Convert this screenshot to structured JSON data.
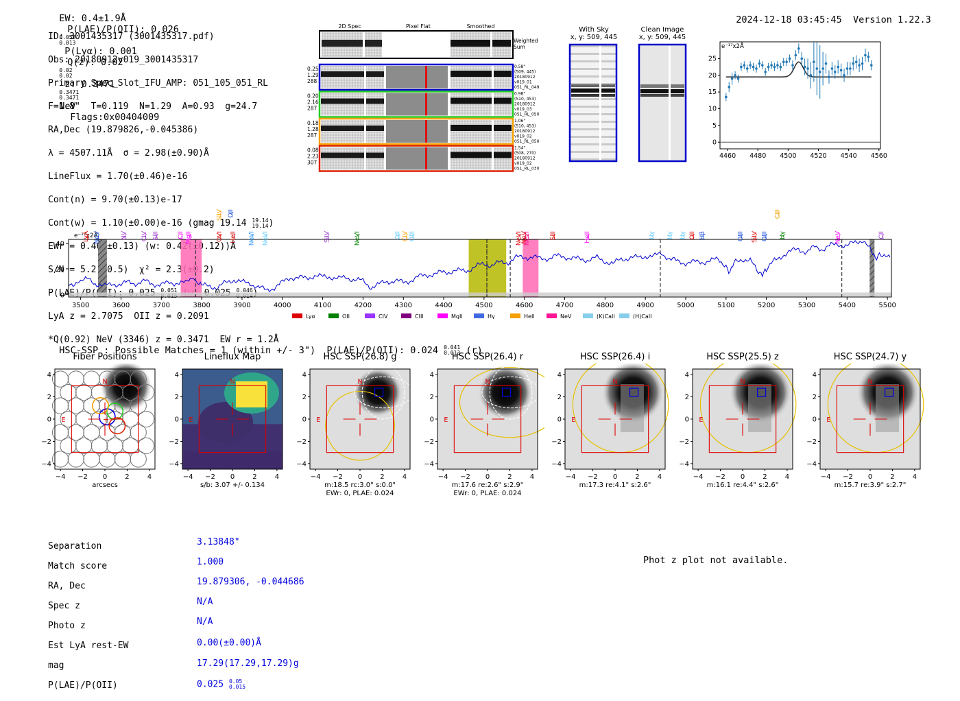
{
  "header": {
    "ew": "EW: 0.4±1.9Å",
    "plae_label": "P(LAE)/P(OII): 0.026",
    "plae_hi": "0.058",
    "plae_lo": "0.013",
    "plya": "P(Lyα): 0.001",
    "qz_label": "Q(z): 0.02",
    "qz_hi": "0.02",
    "qz_lo": "0.02",
    "z_label": "z: 0.3471",
    "z_hi": "0.3471",
    "z_lo": "0.3471",
    "z_line": "NeV",
    "flags": "Flags:0x00404009",
    "datetime": "2024-12-18 03:45:45",
    "version": "Version 1.22.3"
  },
  "info": {
    "id": "ID: 3001435317 (3001435317.pdf)",
    "obs": "Obs: 20180912v019_3001435317",
    "primary": "Primary Spec_Slot_IFU_AMP: 051_105_051_RL",
    "fline": "F=1.8\"  T=0.119  N=1.29  A=0.93  g=24.7",
    "radec": "RA,Dec (19.879826,-0.045386)",
    "lambda": "λ = 4507.11Å  σ = 2.98(±0.90)Å",
    "lineflux": "LineFlux = 1.70(±0.46)e-16",
    "contn": "Cont(n) = 9.70(±0.13)e-17",
    "contw": "Cont(w) = 1.10(±0.00)e-16 (gmag 19.14",
    "contw_hi": "19.14",
    "contw_lo": "19.14",
    "ewr": "EWr = 0.46(±0.13) (w: 0.42(±0.12))Å",
    "sn": "S/N = 5.2(±0.5)  χ² = 2.3(±0.2)",
    "plae": "P(LAE)/P(OII): 0.025",
    "plae_hi": "0.051",
    "plae_lo": "0.015",
    "plae_w": "(w: 0.025",
    "plae_w_hi": "0.046",
    "plae_w_lo": "0.014",
    "lya": "LyA z = 2.7075  OII z = 0.2091",
    "q": "*Q(0.92) NeV (3346) z = 0.3471  EW r = 1.2Å"
  },
  "spec2d": {
    "col_headers": [
      "2D Spec",
      "Pixel Flat",
      "Smoothed"
    ],
    "weighted_sum": [
      "Weighted",
      "Sum"
    ],
    "rows": [
      {
        "left": [
          "0.25",
          "1.29",
          "288"
        ],
        "right": [
          "0.58\"",
          "(509, 445)",
          "20180912",
          "v019_01",
          "051_RL_049"
        ],
        "color": "#0000cc"
      },
      {
        "left": [
          "0.20",
          "2.16",
          "287"
        ],
        "right": [
          "0.98\"",
          "(510, 453)",
          "20180912",
          "v019_03",
          "051_RL_050"
        ],
        "color": "#22cc22"
      },
      {
        "left": [
          "0.18",
          "1.28",
          "287"
        ],
        "right": [
          "1.06\"",
          "(510, 453)",
          "20180912",
          "v019_02",
          "051_RL_050"
        ],
        "color": "#f5a000"
      },
      {
        "left": [
          "0.08",
          "2.23",
          "307"
        ],
        "right": [
          "1.54\"",
          "(508, 270)",
          "20180912",
          "v019_02",
          "051_RL_030"
        ],
        "color": "#dd2200"
      }
    ]
  },
  "sky": {
    "with_sky_title": "With Sky",
    "with_sky_xy": "x, y: 509, 445",
    "clean_title": "Clean Image",
    "clean_xy": "x, y: 509, 445"
  },
  "zoom_chart": {
    "type": "scatter",
    "unit_label": "e⁻¹⁷x2Å",
    "xlim": [
      4455,
      4561
    ],
    "ylim": [
      -2,
      30
    ],
    "xticks": [
      4460,
      4480,
      4500,
      4520,
      4540,
      4560
    ],
    "yticks": [
      0,
      5,
      10,
      15,
      20,
      25
    ],
    "x": [
      4459,
      4461,
      4463,
      4465,
      4467,
      4469,
      4471,
      4473,
      4475,
      4477,
      4479,
      4481,
      4483,
      4485,
      4487,
      4489,
      4491,
      4493,
      4495,
      4497,
      4499,
      4501,
      4503,
      4505,
      4507,
      4509,
      4511,
      4513,
      4515,
      4517,
      4519,
      4521,
      4523,
      4525,
      4527,
      4529,
      4531,
      4533,
      4535,
      4537,
      4539,
      4541,
      4543,
      4545,
      4547,
      4549,
      4551,
      4553,
      4555
    ],
    "y": [
      13.5,
      16.5,
      19,
      20,
      19,
      22.5,
      23,
      22,
      23,
      22.5,
      22,
      23.5,
      23,
      21,
      22.5,
      23,
      22.5,
      23,
      22.5,
      24,
      24,
      25,
      23,
      26,
      28,
      25,
      22.5,
      22,
      20,
      24,
      22,
      21,
      22,
      23.5,
      19.5,
      22,
      21,
      22.5,
      21.5,
      20,
      22,
      22,
      23.5,
      24,
      23,
      23.5,
      26,
      25.5,
      23
    ],
    "err": [
      1.2,
      1.5,
      1.8,
      1.2,
      1.2,
      1.2,
      1.2,
      1.2,
      1.2,
      1.2,
      1.2,
      1.2,
      1.2,
      1.2,
      1.2,
      1.2,
      1.2,
      1.2,
      1.2,
      1.2,
      1.2,
      1.2,
      1.5,
      1.5,
      1.5,
      2,
      2.5,
      3,
      4,
      6,
      8,
      8,
      5,
      3,
      2,
      2,
      2,
      2,
      2,
      2,
      2,
      2,
      2,
      2,
      2,
      2,
      2,
      1.5,
      1.5
    ],
    "fit_base": 19.5,
    "fit_peak": 24,
    "fit_center": 4507,
    "fit_sigma": 3
  },
  "full_spec": {
    "type": "line",
    "unit_label": "e⁻¹⁷x2Å",
    "xlim": [
      3470,
      5510
    ],
    "ylim": [
      -2,
      43
    ],
    "xticks": [
      3500,
      3600,
      3700,
      3800,
      3900,
      4000,
      4100,
      4200,
      4300,
      4400,
      4500,
      4600,
      4700,
      4800,
      4900,
      5000,
      5100,
      5200,
      5300,
      5400,
      5500
    ],
    "yticks": [
      0,
      20,
      40
    ],
    "spectrum_points": [
      [
        3470,
        8
      ],
      [
        3500,
        10
      ],
      [
        3520,
        12
      ],
      [
        3540,
        9
      ],
      [
        3560,
        7
      ],
      [
        3580,
        9
      ],
      [
        3600,
        7
      ],
      [
        3620,
        9
      ],
      [
        3640,
        8
      ],
      [
        3660,
        10
      ],
      [
        3680,
        9
      ],
      [
        3700,
        8
      ],
      [
        3720,
        10
      ],
      [
        3740,
        9
      ],
      [
        3760,
        8
      ],
      [
        3780,
        14
      ],
      [
        3790,
        8
      ],
      [
        3800,
        6
      ],
      [
        3820,
        7
      ],
      [
        3840,
        6
      ],
      [
        3860,
        10
      ],
      [
        3880,
        12
      ],
      [
        3900,
        9
      ],
      [
        3920,
        8
      ],
      [
        3940,
        5
      ],
      [
        3960,
        3
      ],
      [
        3980,
        6
      ],
      [
        4000,
        10
      ],
      [
        4020,
        14
      ],
      [
        4040,
        13
      ],
      [
        4060,
        12
      ],
      [
        4080,
        14
      ],
      [
        4100,
        13
      ],
      [
        4120,
        14
      ],
      [
        4140,
        13
      ],
      [
        4160,
        14
      ],
      [
        4180,
        12
      ],
      [
        4200,
        10
      ],
      [
        4220,
        5
      ],
      [
        4240,
        7
      ],
      [
        4260,
        10
      ],
      [
        4280,
        11
      ],
      [
        4300,
        10
      ],
      [
        4320,
        12
      ],
      [
        4340,
        14
      ],
      [
        4360,
        15
      ],
      [
        4380,
        15
      ],
      [
        4400,
        17
      ],
      [
        4420,
        18
      ],
      [
        4440,
        19
      ],
      [
        4460,
        20
      ],
      [
        4480,
        22
      ],
      [
        4500,
        24
      ],
      [
        4520,
        22
      ],
      [
        4540,
        24
      ],
      [
        4560,
        25
      ],
      [
        4580,
        29
      ],
      [
        4600,
        30
      ],
      [
        4620,
        30
      ],
      [
        4640,
        28
      ],
      [
        4660,
        28
      ],
      [
        4680,
        29
      ],
      [
        4700,
        29
      ],
      [
        4720,
        28
      ],
      [
        4740,
        28
      ],
      [
        4760,
        28
      ],
      [
        4780,
        29
      ],
      [
        4800,
        26
      ],
      [
        4820,
        23
      ],
      [
        4840,
        27
      ],
      [
        4860,
        28
      ],
      [
        4880,
        29
      ],
      [
        4900,
        31
      ],
      [
        4920,
        30
      ],
      [
        4940,
        33
      ],
      [
        4960,
        27
      ],
      [
        4980,
        25
      ],
      [
        5000,
        24
      ],
      [
        5020,
        25
      ],
      [
        5040,
        26
      ],
      [
        5060,
        27
      ],
      [
        5080,
        28
      ],
      [
        5100,
        23
      ],
      [
        5110,
        18
      ],
      [
        5120,
        24
      ],
      [
        5140,
        27
      ],
      [
        5160,
        26
      ],
      [
        5180,
        17
      ],
      [
        5190,
        14
      ],
      [
        5200,
        20
      ],
      [
        5220,
        27
      ],
      [
        5240,
        31
      ],
      [
        5260,
        33
      ],
      [
        5280,
        35
      ],
      [
        5300,
        32
      ],
      [
        5320,
        37
      ],
      [
        5340,
        36
      ],
      [
        5360,
        39
      ],
      [
        5380,
        40
      ],
      [
        5400,
        38
      ],
      [
        5420,
        40
      ],
      [
        5440,
        42
      ],
      [
        5460,
        33
      ],
      [
        5470,
        28
      ],
      [
        5480,
        33
      ],
      [
        5500,
        30
      ],
      [
        5510,
        29
      ]
    ],
    "shaded_regions": [
      {
        "range": [
          3543,
          3565
        ],
        "color": "#888888",
        "hatch": true
      },
      {
        "range": [
          3748,
          3800
        ],
        "color": "#ff69b4"
      },
      {
        "range": [
          4462,
          4555
        ],
        "color": "#b5b800"
      },
      {
        "range": [
          4596,
          4635
        ],
        "color": "#ff69b4"
      },
      {
        "range": [
          5456,
          5468
        ],
        "color": "#888888",
        "hatch": true
      }
    ],
    "dashed_lines": [
      3785,
      4507,
      4565,
      4937,
      5387
    ],
    "dotted_lines": [
      4507
    ],
    "line_labels": [
      {
        "name": "LyA",
        "x": 3518,
        "color": "#dd0000",
        "row": 1
      },
      {
        "name": "NeV",
        "x": 3545,
        "color": "#1e50dd",
        "row": 2
      },
      {
        "name": "NV",
        "x": 3612,
        "color": "#9933cc",
        "row": 3
      },
      {
        "name": "CIV",
        "x": 3662,
        "color": "#9933cc",
        "row": 4
      },
      {
        "name": "SiII",
        "x": 3690,
        "color": "#9933cc",
        "row": 5
      },
      {
        "name": "CII",
        "x": 3752,
        "color": "#ff00ff",
        "row": 6
      },
      {
        "name": "MgII",
        "x": 3772,
        "color": "#ff00ff",
        "row": 7
      },
      {
        "name": "SiIV",
        "x": 3848,
        "color": "#f5a000",
        "row": 8
      },
      {
        "name": "OII",
        "x": 3876,
        "color": "#1e50dd",
        "row": 9
      },
      {
        "name": "OVI",
        "x": 3848,
        "color": "#dd0000",
        "row": 10
      },
      {
        "name": "HeII",
        "x": 3882,
        "color": "#cc0000",
        "row": 11
      },
      {
        "name": "NeVI",
        "x": 3928,
        "color": "#3399ff",
        "row": 12
      },
      {
        "name": "NeVI",
        "x": 3962,
        "color": "#66ccff",
        "row": 13
      },
      {
        "name": "SiIV",
        "x": 4115,
        "color": "#9933cc",
        "row": 14
      },
      {
        "name": "NeVI",
        "x": 4190,
        "color": "#008000",
        "row": 15
      },
      {
        "name": "OII",
        "x": 4290,
        "color": "#66ccff",
        "row": 16
      },
      {
        "name": "CIV",
        "x": 4309,
        "color": "#f5a000",
        "row": 17
      },
      {
        "name": "OIII",
        "x": 4326,
        "color": "#66ccff",
        "row": 18
      },
      {
        "name": "NeVI",
        "x": 4590,
        "color": "#dd0000",
        "row": 19
      },
      {
        "name": "NeV",
        "x": 4604,
        "color": "#dd0000",
        "row": 20
      },
      {
        "name": "NeVI",
        "x": 4611,
        "color": "#ff1493",
        "row": 21
      },
      {
        "name": "SiII",
        "x": 4675,
        "color": "#dd0000",
        "row": 22
      },
      {
        "name": "HeII",
        "x": 4760,
        "color": "#ff00ff",
        "row": 23
      },
      {
        "name": "Hγ",
        "x": 4920,
        "color": "#66ccff",
        "row": 24
      },
      {
        "name": "Hγ",
        "x": 4965,
        "color": "#66ccff",
        "row": 25
      },
      {
        "name": "Hγ",
        "x": 4997,
        "color": "#66ccff",
        "row": 26
      },
      {
        "name": "OII",
        "x": 5020,
        "color": "#dd0000",
        "row": 27
      },
      {
        "name": "Hβ",
        "x": 5045,
        "color": "#1e50dd",
        "row": 28
      },
      {
        "name": "OIII",
        "x": 5140,
        "color": "#1e50dd",
        "row": 29
      },
      {
        "name": "SiIV",
        "x": 5175,
        "color": "#dd0000",
        "row": 30
      },
      {
        "name": "OIII",
        "x": 5200,
        "color": "#1e50dd",
        "row": 31
      },
      {
        "name": "CIII",
        "x": 5232,
        "color": "#f5a000",
        "row": 32
      },
      {
        "name": "Hγ",
        "x": 5244,
        "color": "#008000",
        "row": 33
      },
      {
        "name": "NeV",
        "x": 5382,
        "color": "#ff00ff",
        "row": 34
      },
      {
        "name": "CII",
        "x": 5490,
        "color": "#9933cc",
        "row": 35
      }
    ],
    "legend": [
      {
        "label": "Lyα",
        "color": "#dd0000"
      },
      {
        "label": "OII",
        "color": "#008000"
      },
      {
        "label": "CIV",
        "color": "#9933ff"
      },
      {
        "label": "CIII",
        "color": "#800080"
      },
      {
        "label": "MgII",
        "color": "#ff00ff"
      },
      {
        "label": "Hγ",
        "color": "#4169e1"
      },
      {
        "label": "HeII",
        "color": "#f5a000"
      },
      {
        "label": "NeV",
        "color": "#ff1493"
      },
      {
        "label": "(K)CaII",
        "color": "#87ceeb"
      },
      {
        "label": "(H)CaII",
        "color": "#87ceeb"
      }
    ]
  },
  "hsc": {
    "header": "HSC-SSP : Possible Matches = 1 (within +/- 3\")  P(LAE)/P(OII): 0.024",
    "header_hi": "0.041",
    "header_lo": "0.013",
    "header_band": "(r)",
    "axis_ticks": [
      "4",
      "2",
      "0",
      "−2",
      "−4"
    ],
    "xaxis_ticks": [
      "−4",
      "−2",
      "0",
      "2",
      "4"
    ],
    "compass_n": "N",
    "compass_e": "E",
    "panels": [
      {
        "title": "Fiber Positions",
        "caption1": "arcsecs",
        "caption2": ""
      },
      {
        "title": "Lineflux Map",
        "caption1": "s/b: 3.07 +/- 0.134",
        "caption2": ""
      },
      {
        "title": "HSC SSP(26.8) g",
        "caption1": "m:18.5 rc:3.0\"  s:0.0\"",
        "caption2": "EWr: 0, PLAE: 0.024"
      },
      {
        "title": "HSC SSP(26.4) r",
        "caption1": "m:17.6  re:2.6\"  s:2.9\"",
        "caption2": "EWr: 0, PLAE: 0.024"
      },
      {
        "title": "HSC SSP(26.4) i",
        "caption1": "m:17.3  re:4.1\"  s:2.6\"",
        "caption2": ""
      },
      {
        "title": "HSC SSP(25.5) z",
        "caption1": "m:16.1  re:4.4\"  s:2.6\"",
        "caption2": ""
      },
      {
        "title": "HSC SSP(24.7) y",
        "caption1": "m:15.7  re:3.9\"  s:2.7\"",
        "caption2": ""
      }
    ]
  },
  "match": {
    "keys": [
      "Separation",
      "Match score",
      "RA, Dec",
      "Spec z",
      "Photo z",
      "Est LyA rest-EW",
      "mag",
      "P(LAE)/P(OII)"
    ],
    "separation": "3.13848\"",
    "match_score": "1.000",
    "radec": "19.879306, -0.044686",
    "spec_z": "N/A",
    "photo_z": "N/A",
    "est_lya_ew": "0.00(±0.00)Å",
    "mag": "17.29(17.29,17.29)g",
    "plae": "0.025",
    "plae_hi": "0.05",
    "plae_lo": "0.015",
    "photz_msg": "Phot z plot not available."
  },
  "colors": {
    "spectrum": "#0000cc",
    "errbar": "#1f77b4",
    "fit": "#333333",
    "red": "#dd0000",
    "yellow": "#e8c000",
    "blue_box": "#0000dd"
  }
}
